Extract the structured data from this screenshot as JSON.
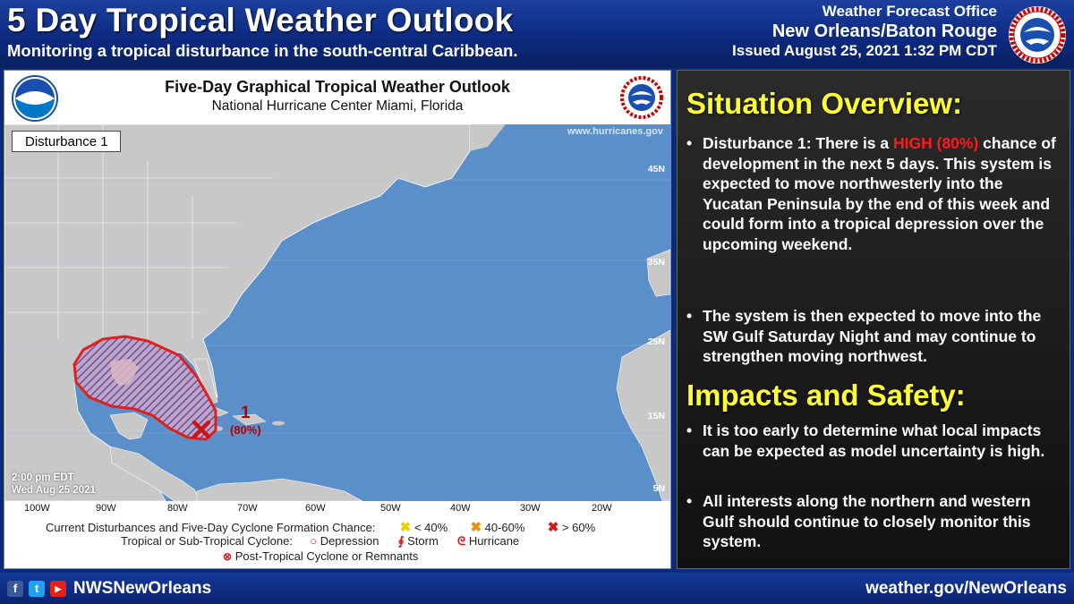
{
  "header": {
    "title": "5 Day Tropical Weather Outlook",
    "subtitle": "Monitoring a tropical disturbance in the south-central Caribbean.",
    "office_line1": "Weather Forecast Office",
    "office_line2": "New Orleans/Baton Rouge",
    "issued": "Issued August 25, 2021 1:32 PM CDT",
    "logo_icon": "nws-logo-icon"
  },
  "map": {
    "title": "Five-Day Graphical Tropical Weather Outlook",
    "subtitle": "National Hurricane Center  Miami, Florida",
    "website": "www.hurricanes.gov",
    "disturbance_label": "Disturbance 1",
    "issue_time_line1": "2:00 pm EDT",
    "issue_time_line2": "Wed Aug 25 2021",
    "disturbance_number": "1",
    "disturbance_chance": "(80%)",
    "latitudes": [
      "45N",
      "35N",
      "25N",
      "15N",
      "5N"
    ],
    "longitudes": [
      "100W",
      "90W",
      "80W",
      "70W",
      "60W",
      "50W",
      "40W",
      "30W",
      "20W"
    ],
    "colors": {
      "ocean": "#5b8fc9",
      "land": "#c8c8c8",
      "outline_high": "#e0201c",
      "hatch": "#6a3a8a"
    }
  },
  "legend": {
    "row1_label": "Current Disturbances and Five-Day Cyclone Formation Chance:",
    "low": "< 40%",
    "medium": "40-60%",
    "high": "> 60%",
    "row2_label": "Tropical or Sub-Tropical Cyclone:",
    "depression": "Depression",
    "storm": "Storm",
    "hurricane": "Hurricane",
    "row3_label": "Post-Tropical Cyclone or Remnants"
  },
  "overview": {
    "heading": "Situation Overview:",
    "b1_pre": "Disturbance 1: There is a ",
    "b1_high": "HIGH  (80%)",
    "b1_post": " chance of development in the next 5 days. This system is expected to move northwesterly  into the Yucatan Peninsula by the end of this week and could form into a tropical depression over the upcoming weekend.",
    "b2": "The system is then expected to move into the SW Gulf Saturday Night  and may continue to strengthen moving northwest."
  },
  "impacts": {
    "heading": "Impacts and Safety:",
    "b1": "It is too early to determine what local impacts can be expected as model uncertainty is high.",
    "b2": "All interests along the northern and western Gulf should continue to closely monitor this system."
  },
  "footer": {
    "handle": "NWSNewOrleans",
    "website": "weather.gov/NewOrleans",
    "icons": [
      "facebook-icon",
      "twitter-icon",
      "youtube-icon"
    ]
  }
}
